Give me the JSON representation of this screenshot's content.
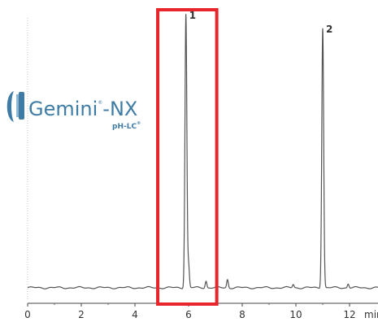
{
  "brand": {
    "name": "Gemini",
    "sup": "®",
    "suffix": "-NX",
    "subtitle": "pH-LC",
    "subtitle_mark": "®",
    "color": "#3f7ca5"
  },
  "chart_data": {
    "type": "line",
    "xlabel": "min",
    "xlim": [
      0,
      13.2
    ],
    "ylim": [
      0,
      100
    ],
    "x_ticks": [
      0,
      2,
      4,
      6,
      8,
      10,
      12
    ],
    "trace_color": "#555555",
    "baseline": 2.4,
    "peaks": [
      {
        "label": "1",
        "x": 5.9,
        "height": 99
      },
      {
        "label": "2",
        "x": 11.0,
        "height": 94
      }
    ],
    "minor_peaks": [
      {
        "x": 6.0,
        "height": 8
      },
      {
        "x": 6.65,
        "height": 2.5
      },
      {
        "x": 7.45,
        "height": 3
      },
      {
        "x": 9.9,
        "height": 1.2
      },
      {
        "x": 11.95,
        "height": 1.5
      }
    ],
    "highlight": {
      "x_start": 4.85,
      "x_end": 7.05,
      "color": "#e8252b"
    }
  }
}
